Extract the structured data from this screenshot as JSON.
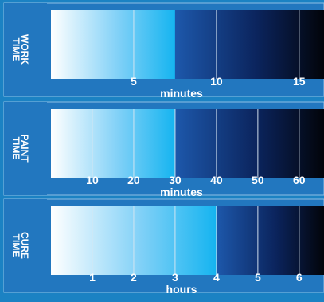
{
  "colors": {
    "background": "#1b82c3",
    "panel": "#2277bf",
    "text": "#ffffff",
    "grid": "#d7e6f2"
  },
  "chart_data": [
    {
      "type": "bar",
      "title": "",
      "side_label_words": [
        "WORK",
        "TIME"
      ],
      "xlabel": "minutes",
      "ylabel": "",
      "xlim": [
        0,
        16.5
      ],
      "tick_values": [
        5,
        10,
        15
      ],
      "tick_labels": [
        "5",
        "10",
        "15"
      ],
      "grid": true,
      "split_value": 7.5
    },
    {
      "type": "bar",
      "title": "",
      "side_label_words": [
        "PAINT",
        "TIME"
      ],
      "xlabel": "minutes",
      "ylabel": "",
      "xlim": [
        0,
        66
      ],
      "tick_values": [
        10,
        20,
        30,
        40,
        50,
        60
      ],
      "tick_labels": [
        "10",
        "20",
        "30",
        "40",
        "50",
        "60"
      ],
      "grid": true,
      "split_value": 30
    },
    {
      "type": "bar",
      "title": "",
      "side_label_words": [
        "CURE",
        "TIME"
      ],
      "xlabel": "hours",
      "ylabel": "",
      "xlim": [
        0,
        6.6
      ],
      "tick_values": [
        1,
        2,
        3,
        4,
        5,
        6
      ],
      "tick_labels": [
        "1",
        "2",
        "3",
        "4",
        "5",
        "6"
      ],
      "grid": true,
      "split_value": 4
    }
  ]
}
